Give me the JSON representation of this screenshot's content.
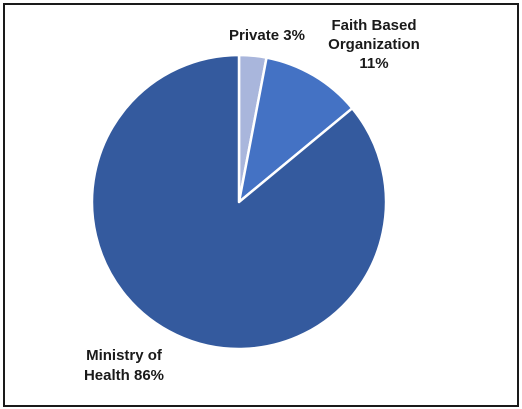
{
  "chart_data": {
    "type": "pie",
    "title": "",
    "slices": [
      {
        "name": "Private",
        "value": 3,
        "color": "#a9b6dc",
        "label_lines": [
          "Private 3%"
        ]
      },
      {
        "name": "Faith Based Organization",
        "value": 11,
        "color": "#4472c4",
        "label_lines": [
          "Faith Based",
          "Organization",
          "11%"
        ]
      },
      {
        "name": "Ministry of Health",
        "value": 86,
        "color": "#345a9e",
        "label_lines": [
          "Ministry of",
          "Health 86%"
        ]
      }
    ],
    "start_angle": "12 o'clock",
    "direction": "clockwise",
    "slice_separator_color": "#ffffff"
  }
}
